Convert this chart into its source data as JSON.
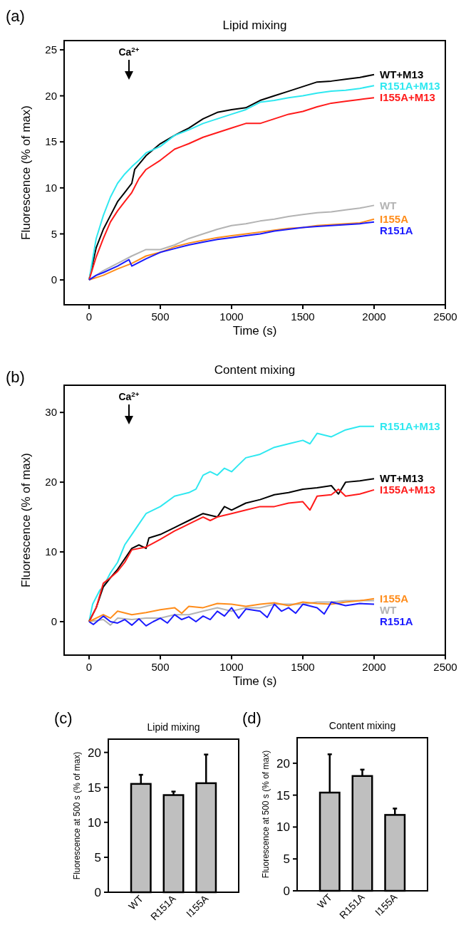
{
  "chart_data": [
    {
      "type": "line",
      "title": "Lipid mixing",
      "xlabel": "Time (s)",
      "ylabel": "Fluorescence (% of max)",
      "xlim": [
        -175,
        2500
      ],
      "ylim": [
        -2.7,
        26
      ],
      "xticks": [
        0,
        500,
        1000,
        1500,
        2000,
        2500
      ],
      "yticks": [
        0,
        5,
        10,
        15,
        20,
        25
      ],
      "grid": false,
      "annotations": [
        "(a)",
        "Ca$^{2+}$"
      ],
      "series": [
        {
          "name": "WT+M13",
          "color": "#000000",
          "x": [
            0,
            50,
            100,
            150,
            200,
            250,
            300,
            320,
            400,
            500,
            600,
            700,
            800,
            900,
            1000,
            1100,
            1200,
            1300,
            1400,
            1500,
            1600,
            1700,
            1800,
            1900,
            2000
          ],
          "values": [
            0,
            3.5,
            5.5,
            7,
            8.5,
            9.5,
            10.5,
            12,
            13.5,
            14.8,
            15.7,
            16.5,
            17.5,
            18.2,
            18.5,
            18.7,
            19.5,
            20,
            20.5,
            21,
            21.5,
            21.6,
            21.8,
            22,
            22.3
          ]
        },
        {
          "name": "R151A+M13",
          "color": "#2ee8f0",
          "x": [
            0,
            50,
            100,
            150,
            200,
            250,
            300,
            350,
            400,
            500,
            600,
            700,
            800,
            900,
            1000,
            1100,
            1200,
            1300,
            1400,
            1500,
            1600,
            1700,
            1800,
            1900,
            2000
          ],
          "values": [
            0,
            4.5,
            7,
            9,
            10.5,
            11.5,
            12.3,
            13,
            13.8,
            14.5,
            15.7,
            16.3,
            17,
            17.5,
            18,
            18.5,
            19.3,
            19.5,
            19.8,
            20,
            20.3,
            20.5,
            20.6,
            20.8,
            21.1
          ]
        },
        {
          "name": "I155A+M13",
          "color": "#ff1a1a",
          "x": [
            0,
            50,
            100,
            150,
            200,
            250,
            300,
            350,
            400,
            500,
            600,
            700,
            800,
            900,
            1000,
            1100,
            1200,
            1300,
            1400,
            1500,
            1600,
            1700,
            1800,
            1900,
            2000
          ],
          "values": [
            0,
            2.5,
            4.5,
            6.3,
            7.5,
            8.5,
            9.5,
            11,
            12,
            13,
            14.2,
            14.8,
            15.5,
            16,
            16.5,
            17,
            17,
            17.5,
            18,
            18.3,
            18.8,
            19.2,
            19.4,
            19.6,
            19.8
          ]
        },
        {
          "name": "WT",
          "color": "#b3b3b3",
          "x": [
            0,
            100,
            200,
            300,
            400,
            500,
            600,
            700,
            800,
            900,
            1000,
            1100,
            1200,
            1300,
            1400,
            1500,
            1600,
            1700,
            1800,
            1900,
            2000
          ],
          "values": [
            0,
            1,
            1.8,
            2.6,
            3.3,
            3.3,
            3.8,
            4.5,
            5,
            5.5,
            5.9,
            6.1,
            6.4,
            6.6,
            6.9,
            7.1,
            7.3,
            7.4,
            7.6,
            7.8,
            8.1
          ]
        },
        {
          "name": "I155A",
          "color": "#ff8c1a",
          "x": [
            0,
            100,
            200,
            300,
            400,
            500,
            600,
            700,
            800,
            900,
            1000,
            1100,
            1200,
            1300,
            1400,
            1500,
            1600,
            1700,
            1800,
            1900,
            2000
          ],
          "values": [
            0,
            0.5,
            1.2,
            1.8,
            2.6,
            3,
            3.6,
            4,
            4.3,
            4.6,
            4.8,
            5,
            5.2,
            5.4,
            5.6,
            5.7,
            5.9,
            6,
            6.1,
            6.2,
            6.6
          ]
        },
        {
          "name": "R151A",
          "color": "#1a1aff",
          "x": [
            0,
            50,
            100,
            200,
            280,
            300,
            400,
            500,
            600,
            700,
            800,
            900,
            1000,
            1100,
            1200,
            1300,
            1400,
            1500,
            1600,
            1700,
            1800,
            1900,
            2000
          ],
          "values": [
            0,
            0.5,
            0.8,
            1.5,
            2.2,
            1.5,
            2.3,
            3,
            3.4,
            3.8,
            4.1,
            4.4,
            4.6,
            4.8,
            5,
            5.3,
            5.5,
            5.7,
            5.8,
            5.9,
            6,
            6.1,
            6.3
          ]
        }
      ]
    },
    {
      "type": "line",
      "title": "Content mixing",
      "xlabel": "Time (s)",
      "ylabel": "Fluorescence (% of max)",
      "xlim": [
        -175,
        2500
      ],
      "ylim": [
        -4.8,
        33.9
      ],
      "xticks": [
        0,
        500,
        1000,
        1500,
        2000,
        2500
      ],
      "yticks": [
        0,
        10,
        20,
        30
      ],
      "grid": false,
      "annotations": [
        "(b)",
        "Ca$^{2+}$"
      ],
      "series": [
        {
          "name": "R151A+M13",
          "color": "#2ee8f0",
          "x": [
            0,
            25,
            75,
            100,
            150,
            200,
            250,
            300,
            350,
            400,
            500,
            600,
            700,
            750,
            800,
            850,
            900,
            950,
            1000,
            1050,
            1100,
            1200,
            1300,
            1400,
            1500,
            1550,
            1600,
            1700,
            1800,
            1900,
            2000
          ],
          "values": [
            0,
            2.5,
            4.5,
            5,
            7,
            8.5,
            11,
            12.5,
            14,
            15.5,
            16.5,
            18,
            18.5,
            19,
            21,
            21.5,
            21,
            22,
            21.5,
            22.5,
            23.5,
            24,
            25,
            25.5,
            26,
            25.5,
            27,
            26.5,
            27.5,
            28,
            28
          ]
        },
        {
          "name": "WT+M13",
          "color": "#000000",
          "x": [
            0,
            50,
            100,
            150,
            200,
            250,
            300,
            350,
            400,
            420,
            500,
            600,
            700,
            800,
            900,
            950,
            1000,
            1100,
            1200,
            1300,
            1400,
            1500,
            1600,
            1700,
            1750,
            1800,
            1900,
            2000
          ],
          "values": [
            0,
            2,
            5,
            6.3,
            7.5,
            9,
            10.5,
            11,
            10.5,
            12,
            12.5,
            13.5,
            14.5,
            15.5,
            15,
            16.5,
            16,
            17,
            17.5,
            18.2,
            18.5,
            19,
            19.2,
            19.5,
            18.3,
            20,
            20.2,
            20.5
          ]
        },
        {
          "name": "I155A+M13",
          "color": "#ff1a1a",
          "x": [
            0,
            50,
            100,
            150,
            200,
            250,
            300,
            400,
            500,
            600,
            700,
            800,
            850,
            900,
            1000,
            1100,
            1200,
            1300,
            1400,
            1500,
            1550,
            1600,
            1700,
            1750,
            1800,
            1900,
            2000
          ],
          "values": [
            0,
            2,
            5.5,
            6.3,
            7.2,
            8.5,
            10.3,
            10.7,
            11.8,
            13,
            14,
            15,
            14.5,
            15,
            15.5,
            16,
            16.5,
            16.5,
            17,
            17.2,
            16,
            18,
            18.2,
            19,
            18,
            18.3,
            18.9
          ]
        },
        {
          "name": "WT",
          "color": "#b3b3b3",
          "x": [
            0,
            100,
            150,
            200,
            300,
            400,
            500,
            600,
            700,
            800,
            900,
            1000,
            1100,
            1200,
            1300,
            1400,
            1500,
            1600,
            1700,
            1800,
            1900,
            2000
          ],
          "values": [
            0,
            0.3,
            -0.5,
            0.5,
            0.3,
            0.5,
            0.5,
            1,
            1,
            1.5,
            2,
            1.5,
            2,
            2,
            2.5,
            2.5,
            2.5,
            2.8,
            2.8,
            3,
            3,
            3
          ]
        },
        {
          "name": "I155A",
          "color": "#ff8c1a",
          "x": [
            0,
            100,
            150,
            200,
            300,
            400,
            500,
            600,
            650,
            700,
            800,
            900,
            1000,
            1100,
            1200,
            1300,
            1400,
            1500,
            1600,
            1700,
            1800,
            1900,
            2000
          ],
          "values": [
            0,
            1,
            0.5,
            1.5,
            1,
            1.3,
            1.7,
            2,
            1.2,
            2.2,
            2,
            2.6,
            2.5,
            2.2,
            2.5,
            2.7,
            2.3,
            2.8,
            2.6,
            2.5,
            2.8,
            3,
            3.3
          ]
        },
        {
          "name": "R151A",
          "color": "#1a1aff",
          "x": [
            0,
            30,
            100,
            150,
            200,
            250,
            300,
            350,
            400,
            450,
            500,
            550,
            600,
            650,
            700,
            750,
            800,
            850,
            900,
            950,
            1000,
            1050,
            1100,
            1200,
            1250,
            1300,
            1350,
            1400,
            1450,
            1500,
            1600,
            1650,
            1700,
            1800,
            1900,
            2000
          ],
          "values": [
            0,
            -0.4,
            0.8,
            0,
            -0.2,
            0.3,
            -0.5,
            0.4,
            -0.6,
            0,
            0.5,
            -0.2,
            1,
            0.3,
            0.7,
            0,
            0.8,
            0.3,
            1.5,
            0.8,
            2,
            0.5,
            1.8,
            1.5,
            0.6,
            2.5,
            1.5,
            2,
            1.2,
            2.5,
            2,
            1.1,
            2.8,
            2.3,
            2.6,
            2.5
          ]
        }
      ]
    },
    {
      "type": "bar",
      "title": "Lipid mixing",
      "ylabel": "Fluorescence at 500 s (% of max)",
      "categories": [
        "WT",
        "R151A",
        "I155A"
      ],
      "values": [
        15.5,
        13.9,
        15.6
      ],
      "errors": [
        [
          15.5,
          16.8
        ],
        [
          13.9,
          14.4
        ],
        [
          15.6,
          19.7
        ]
      ],
      "color": "#bfbfbf",
      "ylim": [
        0,
        21.9
      ],
      "yticks": [
        0,
        5,
        10,
        15,
        20
      ],
      "grid": false,
      "annotations": [
        "(c)"
      ]
    },
    {
      "type": "bar",
      "title": "Content mixing",
      "ylabel": "Fluorescence at 500 s (% of max)",
      "categories": [
        "WT",
        "R151A",
        "I155A"
      ],
      "values": [
        15.4,
        18,
        11.9
      ],
      "errors": [
        [
          15.4,
          21.4
        ],
        [
          18,
          19
        ],
        [
          11.9,
          12.9
        ]
      ],
      "color": "#bfbfbf",
      "ylim": [
        0,
        24
      ],
      "yticks": [
        0,
        5,
        10,
        15,
        20
      ],
      "grid": false,
      "annotations": [
        "(d)"
      ]
    }
  ]
}
